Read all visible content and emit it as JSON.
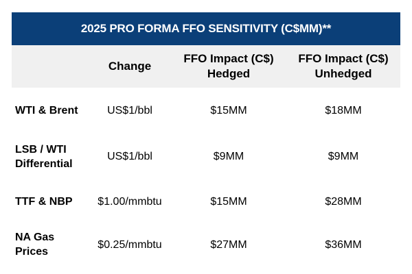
{
  "title": "2025 PRO FORMA FFO SENSITIVITY (C$MM)**",
  "headers": [
    "",
    "Change",
    "FFO Impact (C$)\nHedged",
    "FFO Impact (C$)\nUnhedged"
  ],
  "header_lines": {
    "change": "Change",
    "hedged_1": "FFO Impact (C$)",
    "hedged_2": "Hedged",
    "unhedged_1": "FFO Impact (C$)",
    "unhedged_2": "Unhedged"
  },
  "rows": [
    {
      "label_1": "WTI & Brent",
      "label_2": "",
      "change": "US$1/bbl",
      "hedged": "$15MM",
      "unhedged": "$18MM"
    },
    {
      "label_1": "LSB / WTI",
      "label_2": "Differential",
      "change": "US$1/bbl",
      "hedged": "$9MM",
      "unhedged": "$9MM"
    },
    {
      "label_1": "TTF & NBP",
      "label_2": "",
      "change": "$1.00/mmbtu",
      "hedged": "$15MM",
      "unhedged": "$28MM"
    },
    {
      "label_1": "NA Gas",
      "label_2": "Prices",
      "change": "$0.25/mmbtu",
      "hedged": "$27MM",
      "unhedged": "$36MM"
    }
  ],
  "colors": {
    "header_band": "#0b3f78",
    "column_header_bg": "#f0f0f0"
  }
}
